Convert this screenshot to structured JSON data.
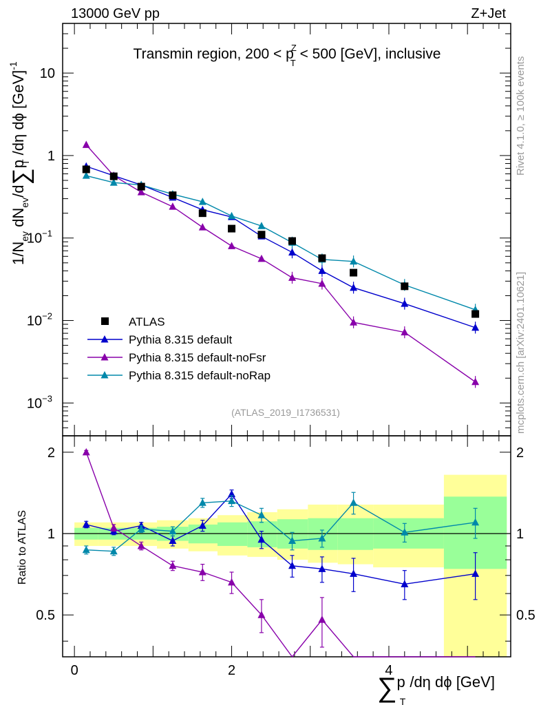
{
  "header": {
    "left": "13000 GeV pp",
    "right": "Z+Jet"
  },
  "side": {
    "rivet": "Rivet 4.1.0, ≥ 100k events",
    "mcplots": "mcplots.cern.ch [arXiv:2401.10621]"
  },
  "chart_data": {
    "type": "scatter",
    "title": "Transmin region, 200 < p_T^Z < 500 [GeV], inclusive",
    "title_parts": [
      "Transmin region, 200 < p",
      "Z",
      "T",
      " < 500 [GeV], inclusive"
    ],
    "analysis": "(ATLAS_2019_I1736531)",
    "ylabel_parts": [
      "1/N",
      "ev",
      " dN",
      "ev",
      "/d",
      "∑",
      "p",
      "T",
      " /dη dϕ  [GeV]",
      "-1"
    ],
    "xlabel_parts": [
      "∑",
      "p",
      "T",
      "/dη dϕ [GeV]"
    ],
    "ratio_ylabel": "Ratio to ATLAS",
    "xlim": [
      -0.15,
      5.55
    ],
    "ylim_main": [
      0.0004,
      40
    ],
    "ylim_ratio": [
      0.35,
      2.3
    ],
    "x_ticks": [
      "0",
      "2",
      "4"
    ],
    "y_ticks_main": [
      {
        "v": 10,
        "base": "10",
        "exp": ""
      },
      {
        "v": 1,
        "base": "1",
        "exp": ""
      },
      {
        "v": 0.1,
        "base": "10",
        "exp": "−1"
      },
      {
        "v": 0.01,
        "base": "10",
        "exp": "−2"
      },
      {
        "v": 0.001,
        "base": "10",
        "exp": "−3"
      }
    ],
    "y_ticks_ratio": [
      "0.5",
      "1",
      "2"
    ],
    "x": [
      0.15,
      0.5,
      0.85,
      1.25,
      1.63,
      2.0,
      2.38,
      2.77,
      3.15,
      3.55,
      4.2,
      5.1
    ],
    "series": [
      {
        "name": "ATLAS",
        "color": "#000000",
        "marker": "square",
        "values": [
          0.68,
          0.56,
          0.42,
          0.33,
          0.2,
          0.13,
          0.11,
          0.092,
          0.057,
          0.038,
          0.026,
          0.012
        ]
      },
      {
        "name": "Pythia 8.315 default",
        "color": "#0000cc",
        "marker": "triangle",
        "values": [
          0.74,
          0.57,
          0.44,
          0.31,
          0.22,
          0.18,
          0.105,
          0.067,
          0.04,
          0.025,
          0.016,
          0.0082
        ],
        "ratio": [
          1.08,
          1.02,
          1.07,
          0.94,
          1.07,
          1.4,
          0.95,
          0.76,
          0.74,
          0.71,
          0.65,
          0.71
        ],
        "ratio_err": [
          0.03,
          0.03,
          0.03,
          0.04,
          0.05,
          0.05,
          0.07,
          0.07,
          0.08,
          0.1,
          0.08,
          0.14
        ]
      },
      {
        "name": "Pythia 8.315 default-noFsr",
        "color": "#8800aa",
        "marker": "triangle",
        "values": [
          1.35,
          0.57,
          0.36,
          0.24,
          0.135,
          0.08,
          0.056,
          0.033,
          0.028,
          0.0095,
          0.0072,
          0.0018
        ],
        "ratio": [
          2.0,
          1.05,
          0.9,
          0.76,
          0.72,
          0.66,
          0.5,
          0.33,
          0.48,
          0.25,
          0.2,
          0.15
        ],
        "ratio_err": [
          0.03,
          0.03,
          0.03,
          0.03,
          0.05,
          0.06,
          0.07,
          0.07,
          0.1,
          0.1,
          0.1,
          0.1
        ]
      },
      {
        "name": "Pythia 8.315 default-noRap",
        "color": "#0088aa",
        "marker": "triangle",
        "values": [
          0.57,
          0.47,
          0.44,
          0.34,
          0.275,
          0.185,
          0.14,
          0.088,
          0.055,
          0.052,
          0.027,
          0.0135
        ],
        "ratio": [
          0.87,
          0.86,
          1.04,
          1.02,
          1.3,
          1.32,
          1.17,
          0.94,
          0.96,
          1.3,
          1.01,
          1.1
        ],
        "ratio_err": [
          0.03,
          0.03,
          0.03,
          0.04,
          0.05,
          0.06,
          0.07,
          0.07,
          0.07,
          0.12,
          0.08,
          0.14
        ]
      }
    ],
    "bands": {
      "x_edges": [
        0.0,
        0.3,
        0.7,
        1.05,
        1.45,
        1.82,
        2.2,
        2.58,
        2.97,
        3.35,
        3.8,
        4.7,
        5.5
      ],
      "inner": [
        [
          0.95,
          1.05
        ],
        [
          0.95,
          1.05
        ],
        [
          0.95,
          1.05
        ],
        [
          0.94,
          1.06
        ],
        [
          0.92,
          1.08
        ],
        [
          0.9,
          1.1
        ],
        [
          0.89,
          1.11
        ],
        [
          0.88,
          1.13
        ],
        [
          0.87,
          1.14
        ],
        [
          0.87,
          1.14
        ],
        [
          0.88,
          1.14
        ],
        [
          0.74,
          1.37
        ]
      ],
      "outer": [
        [
          0.9,
          1.1
        ],
        [
          0.9,
          1.1
        ],
        [
          0.9,
          1.1
        ],
        [
          0.88,
          1.12
        ],
        [
          0.86,
          1.14
        ],
        [
          0.83,
          1.17
        ],
        [
          0.82,
          1.2
        ],
        [
          0.8,
          1.23
        ],
        [
          0.78,
          1.28
        ],
        [
          0.77,
          1.28
        ],
        [
          0.75,
          1.28
        ],
        [
          0.35,
          1.65
        ]
      ],
      "inner_color": "#99ff99",
      "outer_color": "#ffff99"
    }
  }
}
